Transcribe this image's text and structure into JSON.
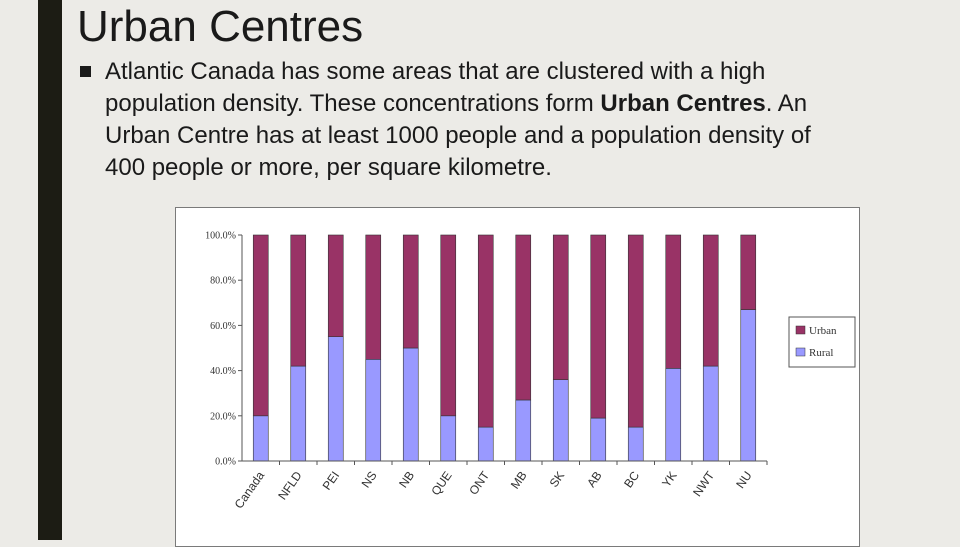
{
  "slide": {
    "title": "Urban Centres",
    "text_part1": "Atlantic Canada has some areas that are clustered with a high population density. These concentrations form ",
    "text_bold": "Urban Centres",
    "text_part2": ". An Urban Centre has at least 1000 people and a population density of 400 people or more, per square kilometre.",
    "colors": {
      "background": "#ecebe7",
      "accent_bar": "#1c1c14",
      "text": "#1a1a1a"
    }
  },
  "chart_data": {
    "type": "bar",
    "stacked": true,
    "percent": true,
    "categories": [
      "Canada",
      "NFLD",
      "PEI",
      "NS",
      "NB",
      "QUE",
      "ONT",
      "MB",
      "SK",
      "AB",
      "BC",
      "YK",
      "NWT",
      "NU"
    ],
    "series": [
      {
        "name": "Rural",
        "color": "#9999ff",
        "values": [
          20,
          42,
          55,
          45,
          50,
          20,
          15,
          27,
          36,
          19,
          15,
          41,
          42,
          67
        ]
      },
      {
        "name": "Urban",
        "color": "#993366",
        "values": [
          80,
          58,
          45,
          55,
          50,
          80,
          85,
          73,
          64,
          81,
          85,
          59,
          58,
          33
        ]
      }
    ],
    "yticks": [
      "0.0%",
      "20.0%",
      "40.0%",
      "60.0%",
      "80.0%",
      "100.0%"
    ],
    "ylim": [
      0,
      100
    ],
    "legend_position": "right",
    "legend": [
      "Urban",
      "Rural"
    ],
    "grid": false
  }
}
